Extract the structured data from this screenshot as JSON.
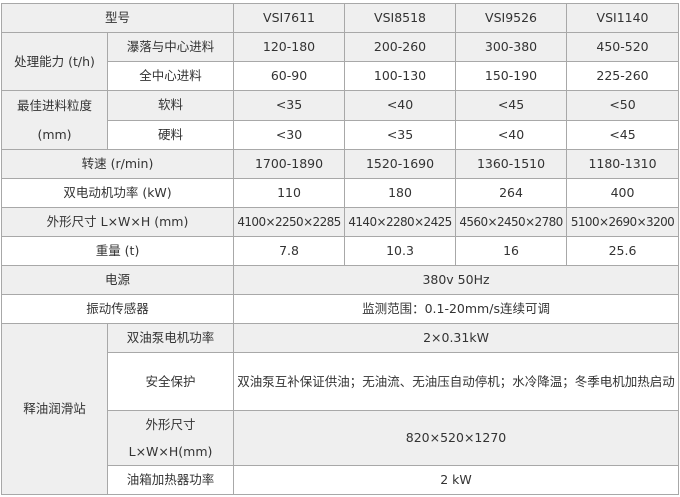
{
  "header": {
    "label": "型号",
    "models": [
      "VSI7611",
      "VSI8518",
      "VSI9526",
      "VSI1140"
    ]
  },
  "capacity": {
    "label": "处理能力 (t/h)",
    "rows": [
      {
        "label": "瀑落与中心进料",
        "values": [
          "120-180",
          "200-260",
          "300-380",
          "450-520"
        ]
      },
      {
        "label": "全中心进料",
        "values": [
          "60-90",
          "100-130",
          "150-190",
          "225-260"
        ]
      }
    ]
  },
  "feed_size": {
    "label_line1": "最佳进料粒度",
    "label_line2": "(mm)",
    "rows": [
      {
        "label": "软料",
        "values": [
          "<35",
          "<40",
          "<45",
          "<50"
        ]
      },
      {
        "label": "硬料",
        "values": [
          "<30",
          "<35",
          "<40",
          "<45"
        ]
      }
    ]
  },
  "speed": {
    "label": "转速 (r/min)",
    "values": [
      "1700-1890",
      "1520-1690",
      "1360-1510",
      "1180-1310"
    ]
  },
  "motor_power": {
    "label": "双电动机功率 (kW)",
    "values": [
      "110",
      "180",
      "264",
      "400"
    ]
  },
  "dimensions": {
    "label": "外形尺寸 L×W×H (mm)",
    "values": [
      "4100×2250×2285",
      "4140×2280×2425",
      "4560×2450×2780",
      "5100×2690×3200"
    ]
  },
  "weight": {
    "label": "重量 (t)",
    "values": [
      "7.8",
      "10.3",
      "16",
      "25.6"
    ]
  },
  "power_supply": {
    "label": "电源",
    "value": "380v 50Hz"
  },
  "vibration_sensor": {
    "label": "振动传感器",
    "value": "监测范围：0.1-20mm/s连续可调"
  },
  "lubrication": {
    "label": "释油润滑站",
    "pump_power": {
      "label": "双油泵电机功率",
      "value": "2×0.31kW"
    },
    "safety": {
      "label": "安全保护",
      "value": "双油泵互补保证供油；无油流、无油压自动停机；水冷降温；冬季电机加热启动"
    },
    "size": {
      "label_line1": "外形尺寸",
      "label_line2": "L×W×H(mm)",
      "value": "820×520×1270"
    },
    "heater": {
      "label": "油箱加热器功率",
      "value": "2 kW"
    }
  }
}
